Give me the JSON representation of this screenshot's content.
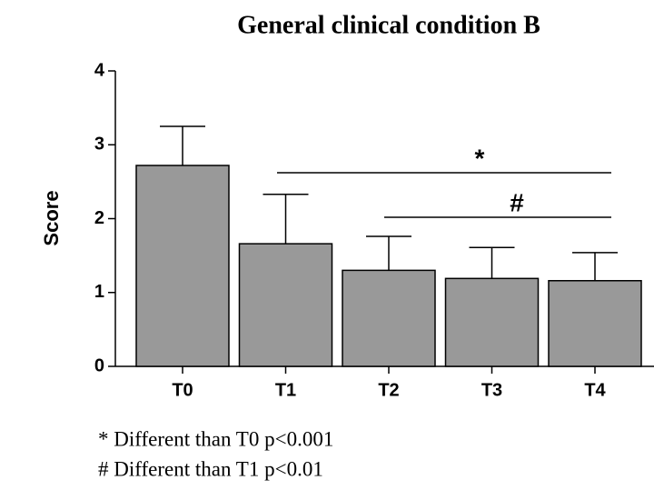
{
  "chart_data": {
    "type": "bar",
    "title": "General clinical condition B",
    "ylabel": "Score",
    "categories": [
      "T0",
      "T1",
      "T2",
      "T3",
      "T4"
    ],
    "values": [
      2.72,
      1.66,
      1.3,
      1.19,
      1.16
    ],
    "errors": [
      0.53,
      0.67,
      0.46,
      0.42,
      0.38
    ],
    "color": "#999999",
    "ylim": [
      0,
      4
    ],
    "yticks": [
      0,
      1,
      2,
      3,
      4
    ],
    "annotations": [
      {
        "text": "*"
      },
      {
        "text": "#"
      }
    ],
    "footnotes": [
      "* Different than T0 p<0.001",
      "# Different  than T1 p<0.01"
    ]
  }
}
